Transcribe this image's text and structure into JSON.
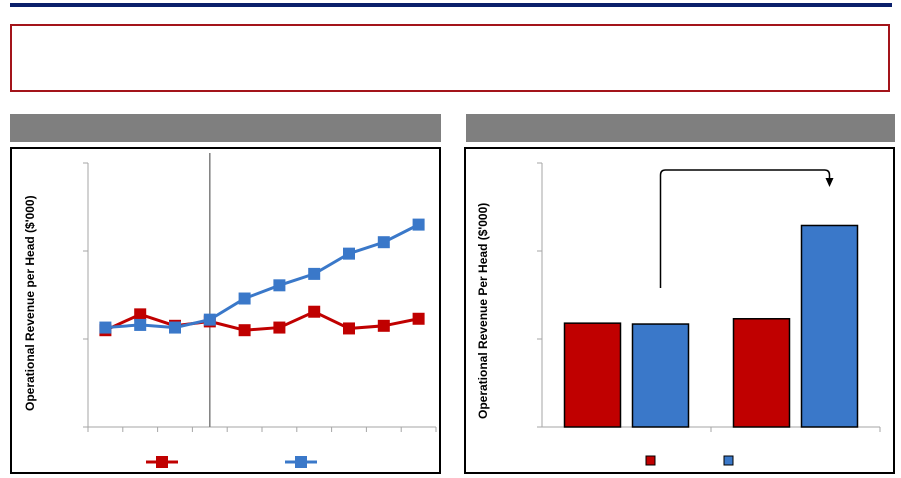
{
  "colors": {
    "header_rule": "#0a1f6b",
    "callout_border": "#a3141a",
    "panel_header": "#7f7f7f",
    "series_red": "#c00000",
    "series_blue": "#3a78c9",
    "axis": "#a6a6a6"
  },
  "chart_data": [
    {
      "type": "line",
      "ylabel": "Operational Revenue per Head ($'000)",
      "x": [
        1,
        2,
        3,
        4,
        5,
        6,
        7,
        8,
        9,
        10
      ],
      "ylim": [
        0,
        3
      ],
      "grid": false,
      "legend": "bottom",
      "vertical_marker_after_index": 3,
      "series": [
        {
          "color": "#c00000",
          "values": [
            1.1,
            1.28,
            1.15,
            1.2,
            1.1,
            1.13,
            1.31,
            1.12,
            1.15,
            1.23
          ]
        },
        {
          "color": "#3a78c9",
          "values": [
            1.13,
            1.16,
            1.13,
            1.22,
            1.46,
            1.61,
            1.74,
            1.97,
            2.1,
            2.3
          ]
        }
      ]
    },
    {
      "type": "bar",
      "ylabel": "Operational Revenue Per Head ($'000)",
      "ylim": [
        0,
        3
      ],
      "grid": false,
      "legend": "bottom",
      "groups": [
        {
          "bars": [
            {
              "color": "#c00000",
              "value": 1.18
            },
            {
              "color": "#3a78c9",
              "value": 1.17
            }
          ]
        },
        {
          "bars": [
            {
              "color": "#c00000",
              "value": 1.23
            },
            {
              "color": "#3a78c9",
              "value": 2.29
            }
          ]
        }
      ],
      "annotation": "arrow-from-first-blue-bar-to-second-blue-bar"
    }
  ]
}
